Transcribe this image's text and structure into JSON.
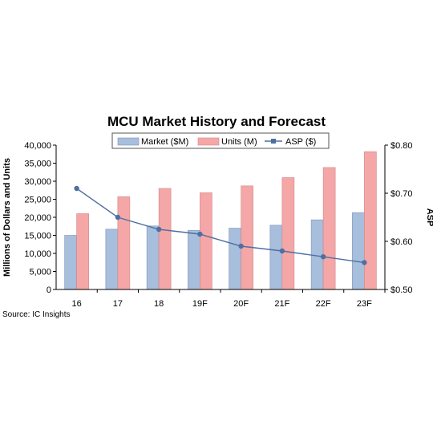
{
  "chart_data": {
    "type": "bar",
    "title": "MCU Market History and Forecast",
    "categories": [
      "16",
      "17",
      "18",
      "19F",
      "20F",
      "21F",
      "22F",
      "23F"
    ],
    "series": [
      {
        "name": "Market ($M)",
        "kind": "bar",
        "axis": "left",
        "color": "#a7bedc",
        "values": [
          15000,
          16700,
          17600,
          16400,
          17000,
          17800,
          19300,
          21300
        ]
      },
      {
        "name": "Units (M)",
        "kind": "bar",
        "axis": "left",
        "color": "#f5a7a7",
        "values": [
          21000,
          25700,
          28000,
          26800,
          28700,
          31000,
          33800,
          38200
        ]
      },
      {
        "name": "ASP ($)",
        "kind": "line",
        "axis": "right",
        "color": "#4f6fa3",
        "values": [
          0.71,
          0.65,
          0.625,
          0.615,
          0.59,
          0.58,
          0.568,
          0.556
        ]
      }
    ],
    "ylabel": "Millions of Dollars and Units",
    "y2label": "ASP",
    "ylim": [
      0,
      40000
    ],
    "yticks": [
      "0",
      "5,000",
      "10,000",
      "15,000",
      "20,000",
      "25,000",
      "30,000",
      "35,000",
      "40,000"
    ],
    "y2lim": [
      0.5,
      0.8
    ],
    "y2ticks": [
      "$0.50",
      "$0.60",
      "$0.70",
      "$0.80"
    ],
    "legend_position": "top",
    "grid": false,
    "source": "Source:  IC Insights"
  }
}
